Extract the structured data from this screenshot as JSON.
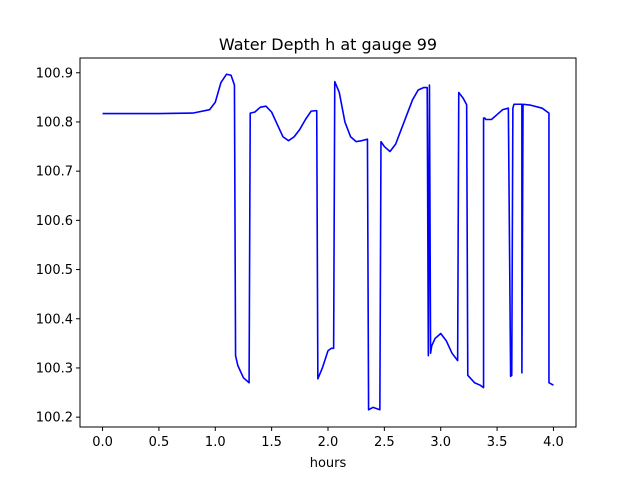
{
  "chart_data": {
    "type": "line",
    "title": "Water Depth h at gauge 99",
    "xlabel": "hours",
    "ylabel": "",
    "xlim": [
      -0.2,
      4.2
    ],
    "ylim": [
      100.18,
      100.93
    ],
    "xticks": [
      0.0,
      0.5,
      1.0,
      1.5,
      2.0,
      2.5,
      3.0,
      3.5,
      4.0
    ],
    "xtick_labels": [
      "0.0",
      "0.5",
      "1.0",
      "1.5",
      "2.0",
      "2.5",
      "3.0",
      "3.5",
      "4.0"
    ],
    "yticks": [
      100.2,
      100.3,
      100.4,
      100.5,
      100.6,
      100.7,
      100.8,
      100.9
    ],
    "ytick_labels": [
      "100.2",
      "100.3",
      "100.4",
      "100.5",
      "100.6",
      "100.7",
      "100.8",
      "100.9"
    ],
    "grid": false,
    "series": [
      {
        "name": "",
        "color": "#0000ff",
        "x": [
          0.0,
          0.5,
          0.8,
          0.95,
          1.0,
          1.05,
          1.1,
          1.14,
          1.17,
          1.18,
          1.2,
          1.25,
          1.3,
          1.31,
          1.35,
          1.4,
          1.45,
          1.5,
          1.55,
          1.6,
          1.65,
          1.7,
          1.75,
          1.8,
          1.85,
          1.9,
          1.91,
          1.95,
          2.0,
          2.03,
          2.05,
          2.06,
          2.1,
          2.15,
          2.2,
          2.25,
          2.3,
          2.35,
          2.36,
          2.4,
          2.46,
          2.47,
          2.5,
          2.55,
          2.6,
          2.65,
          2.7,
          2.75,
          2.8,
          2.85,
          2.88,
          2.89,
          2.9,
          2.91,
          2.92,
          2.95,
          3.0,
          3.05,
          3.1,
          3.15,
          3.16,
          3.2,
          3.23,
          3.24,
          3.3,
          3.35,
          3.38,
          3.38,
          3.39,
          3.4,
          3.45,
          3.5,
          3.55,
          3.6,
          3.62,
          3.63,
          3.64,
          3.65,
          3.66,
          3.7,
          3.72,
          3.72,
          3.73,
          3.8,
          3.9,
          3.96,
          3.96,
          4.0
        ],
        "y": [
          100.817,
          100.817,
          100.818,
          100.825,
          100.84,
          100.88,
          100.897,
          100.895,
          100.875,
          100.325,
          100.305,
          100.28,
          100.27,
          100.818,
          100.82,
          100.83,
          100.832,
          100.82,
          100.795,
          100.77,
          100.762,
          100.77,
          100.785,
          100.805,
          100.822,
          100.823,
          100.278,
          100.3,
          100.335,
          100.34,
          100.34,
          100.882,
          100.86,
          100.8,
          100.77,
          100.76,
          100.762,
          100.765,
          100.215,
          100.22,
          100.215,
          100.76,
          100.75,
          100.74,
          100.755,
          100.785,
          100.815,
          100.845,
          100.865,
          100.87,
          100.87,
          100.325,
          100.875,
          100.33,
          100.345,
          100.36,
          100.37,
          100.355,
          100.33,
          100.315,
          100.86,
          100.848,
          100.835,
          100.285,
          100.27,
          100.265,
          100.26,
          100.808,
          100.808,
          100.805,
          100.805,
          100.815,
          100.825,
          100.828,
          100.283,
          100.285,
          100.828,
          100.836,
          100.836,
          100.836,
          100.836,
          100.29,
          100.836,
          100.834,
          100.828,
          100.818,
          100.27,
          100.265
        ]
      }
    ]
  }
}
